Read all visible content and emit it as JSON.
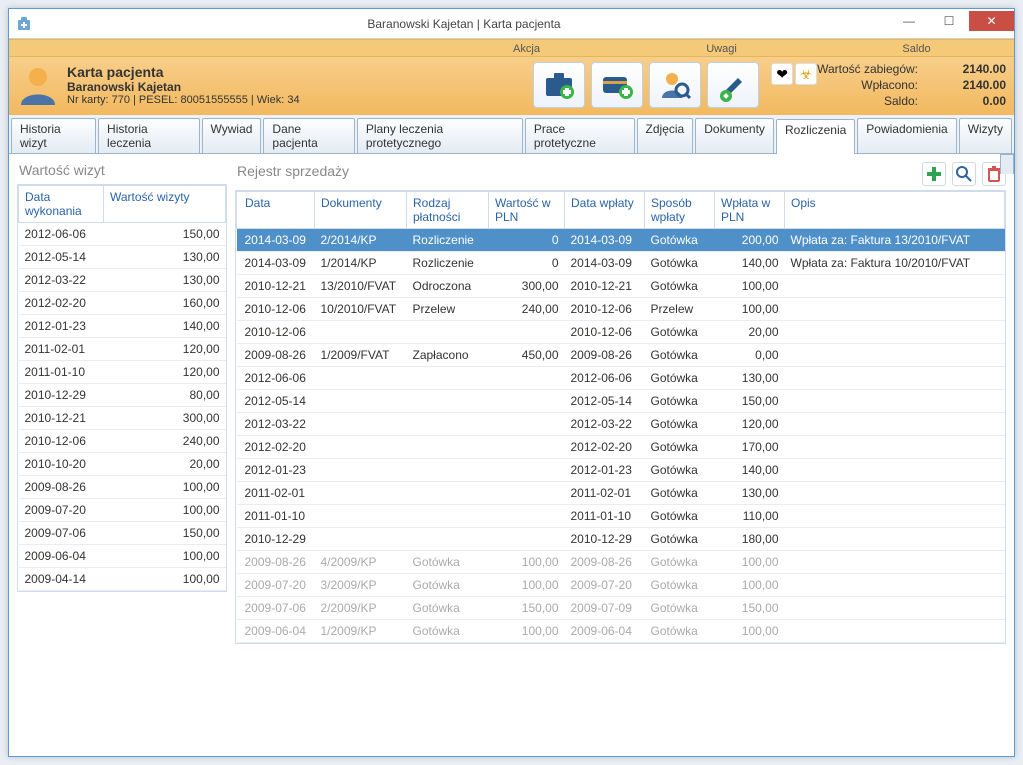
{
  "window": {
    "title": "Baranowski Kajetan | Karta pacjenta"
  },
  "sections": {
    "akcja": "Akcja",
    "uwagi": "Uwagi",
    "saldo": "Saldo"
  },
  "patient": {
    "card_label": "Karta pacjenta",
    "name": "Baranowski Kajetan",
    "details": "Nr karty: 770 | PESEL: 80051555555 | Wiek: 34"
  },
  "balance": {
    "zabiegi_label": "Wartość zabiegów:",
    "zabiegi_val": "2140.00",
    "wplacono_label": "Wpłacono:",
    "wplacono_val": "2140.00",
    "saldo_label": "Saldo:",
    "saldo_val": "0.00"
  },
  "tabs": [
    "Historia wizyt",
    "Historia leczenia",
    "Wywiad",
    "Dane pacjenta",
    "Plany leczenia protetycznego",
    "Prace protetyczne",
    "Zdjęcia",
    "Dokumenty",
    "Rozliczenia",
    "Powiadomienia",
    "Wizyty"
  ],
  "active_tab": "Rozliczenia",
  "left_panel": {
    "title": "Wartość wizyt",
    "headers": [
      "Data wykonania",
      "Wartość wizyty"
    ],
    "rows": [
      [
        "2012-06-06",
        "150,00"
      ],
      [
        "2012-05-14",
        "130,00"
      ],
      [
        "2012-03-22",
        "130,00"
      ],
      [
        "2012-02-20",
        "160,00"
      ],
      [
        "2012-01-23",
        "140,00"
      ],
      [
        "2011-02-01",
        "120,00"
      ],
      [
        "2011-01-10",
        "120,00"
      ],
      [
        "2010-12-29",
        "80,00"
      ],
      [
        "2010-12-21",
        "300,00"
      ],
      [
        "2010-12-06",
        "240,00"
      ],
      [
        "2010-10-20",
        "20,00"
      ],
      [
        "2009-08-26",
        "100,00"
      ],
      [
        "2009-07-20",
        "100,00"
      ],
      [
        "2009-07-06",
        "150,00"
      ],
      [
        "2009-06-04",
        "100,00"
      ],
      [
        "2009-04-14",
        "100,00"
      ]
    ]
  },
  "right_panel": {
    "title": "Rejestr sprzedaży",
    "headers": [
      "Data",
      "Dokumenty",
      "Rodzaj płatności",
      "Wartość w PLN",
      "Data wpłaty",
      "Sposób wpłaty",
      "Wpłata w PLN",
      "Opis"
    ],
    "col_widths": [
      "78px",
      "92px",
      "82px",
      "76px",
      "80px",
      "70px",
      "70px",
      "auto"
    ],
    "rows": [
      {
        "sel": true,
        "c": [
          "2014-03-09",
          "2/2014/KP",
          "Rozliczenie",
          "0",
          "2014-03-09",
          "Gotówka",
          "200,00",
          "Wpłata za: Faktura 13/2010/FVAT"
        ]
      },
      {
        "c": [
          "2014-03-09",
          "1/2014/KP",
          "Rozliczenie",
          "0",
          "2014-03-09",
          "Gotówka",
          "140,00",
          "Wpłata za: Faktura 10/2010/FVAT"
        ]
      },
      {
        "c": [
          "2010-12-21",
          "13/2010/FVAT",
          "Odroczona",
          "300,00",
          "2010-12-21",
          "Gotówka",
          "100,00",
          ""
        ]
      },
      {
        "c": [
          "2010-12-06",
          "10/2010/FVAT",
          "Przelew",
          "240,00",
          "2010-12-06",
          "Przelew",
          "100,00",
          ""
        ]
      },
      {
        "c": [
          "2010-12-06",
          "",
          "",
          "",
          "2010-12-06",
          "Gotówka",
          "20,00",
          ""
        ]
      },
      {
        "c": [
          "2009-08-26",
          "1/2009/FVAT",
          "Zapłacono",
          "450,00",
          "2009-08-26",
          "Gotówka",
          "0,00",
          ""
        ]
      },
      {
        "c": [
          "2012-06-06",
          "",
          "",
          "",
          "2012-06-06",
          "Gotówka",
          "130,00",
          ""
        ]
      },
      {
        "c": [
          "2012-05-14",
          "",
          "",
          "",
          "2012-05-14",
          "Gotówka",
          "150,00",
          ""
        ]
      },
      {
        "c": [
          "2012-03-22",
          "",
          "",
          "",
          "2012-03-22",
          "Gotówka",
          "120,00",
          ""
        ]
      },
      {
        "c": [
          "2012-02-20",
          "",
          "",
          "",
          "2012-02-20",
          "Gotówka",
          "170,00",
          ""
        ]
      },
      {
        "c": [
          "2012-01-23",
          "",
          "",
          "",
          "2012-01-23",
          "Gotówka",
          "140,00",
          ""
        ]
      },
      {
        "c": [
          "2011-02-01",
          "",
          "",
          "",
          "2011-02-01",
          "Gotówka",
          "130,00",
          ""
        ]
      },
      {
        "c": [
          "2011-01-10",
          "",
          "",
          "",
          "2011-01-10",
          "Gotówka",
          "110,00",
          ""
        ]
      },
      {
        "c": [
          "2010-12-29",
          "",
          "",
          "",
          "2010-12-29",
          "Gotówka",
          "180,00",
          ""
        ]
      },
      {
        "dim": true,
        "c": [
          "2009-08-26",
          "4/2009/KP",
          "Gotówka",
          "100,00",
          "2009-08-26",
          "Gotówka",
          "100,00",
          ""
        ]
      },
      {
        "dim": true,
        "c": [
          "2009-07-20",
          "3/2009/KP",
          "Gotówka",
          "100,00",
          "2009-07-20",
          "Gotówka",
          "100,00",
          ""
        ]
      },
      {
        "dim": true,
        "c": [
          "2009-07-06",
          "2/2009/KP",
          "Gotówka",
          "150,00",
          "2009-07-09",
          "Gotówka",
          "150,00",
          ""
        ]
      },
      {
        "dim": true,
        "c": [
          "2009-06-04",
          "1/2009/KP",
          "Gotówka",
          "100,00",
          "2009-06-04",
          "Gotówka",
          "100,00",
          ""
        ]
      }
    ]
  },
  "colors": {
    "accent": "#4f90c8",
    "header_bg": "#f2b95f",
    "border": "#9cb4c9",
    "link": "#2a63a8",
    "close": "#c94f44",
    "dim": "#aaaaaa",
    "green": "#2ea44f",
    "red": "#d9534f"
  }
}
